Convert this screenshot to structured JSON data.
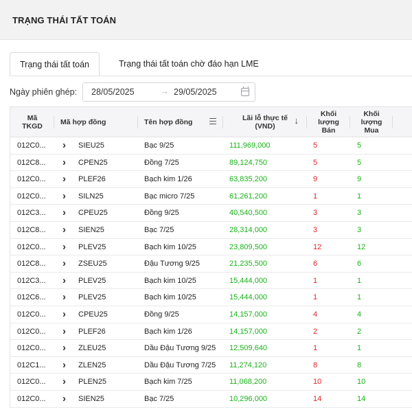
{
  "page": {
    "title": "TRẠNG THÁI TẤT TOÁN"
  },
  "tabs": [
    {
      "label": "Trạng thái tất toán",
      "active": true
    },
    {
      "label": "Trạng thái tất toán chờ đáo hạn LME",
      "active": false
    }
  ],
  "filter": {
    "label": "Ngày phiên ghép:",
    "date_from": "28/05/2025",
    "date_to": "29/05/2025",
    "arrow_icon": "arrow-right-icon",
    "calendar_icon": "calendar-icon"
  },
  "table": {
    "headers": {
      "tkgd": "Mã TKGD",
      "mahd": "Mã hợp đồng",
      "tenhd": "Tên hợp đồng",
      "lailo": "Lãi lỗ thực tế (VND)",
      "ban": "Khối lượng Bán",
      "mua": "Khối lượng Mua"
    },
    "rows": [
      {
        "tkgd": "012C0...",
        "mahd": "SIEU25",
        "tenhd": "Bạc 9/25",
        "lailo": "111,969,000",
        "ban": "5",
        "mua": "5"
      },
      {
        "tkgd": "012C8...",
        "mahd": "CPEN25",
        "tenhd": "Đồng 7/25",
        "lailo": "89,124,750",
        "ban": "5",
        "mua": "5"
      },
      {
        "tkgd": "012C0...",
        "mahd": "PLEF26",
        "tenhd": "Bạch kim 1/26",
        "lailo": "63,835,200",
        "ban": "9",
        "mua": "9"
      },
      {
        "tkgd": "012C0...",
        "mahd": "SILN25",
        "tenhd": "Bạc micro 7/25",
        "lailo": "61,261,200",
        "ban": "1",
        "mua": "1"
      },
      {
        "tkgd": "012C3...",
        "mahd": "CPEU25",
        "tenhd": "Đồng 9/25",
        "lailo": "40,540,500",
        "ban": "3",
        "mua": "3"
      },
      {
        "tkgd": "012C8...",
        "mahd": "SIEN25",
        "tenhd": "Bạc 7/25",
        "lailo": "28,314,000",
        "ban": "3",
        "mua": "3"
      },
      {
        "tkgd": "012C0...",
        "mahd": "PLEV25",
        "tenhd": "Bạch kim 10/25",
        "lailo": "23,809,500",
        "ban": "12",
        "mua": "12"
      },
      {
        "tkgd": "012C8...",
        "mahd": "ZSEU25",
        "tenhd": "Đậu Tương 9/25",
        "lailo": "21,235,500",
        "ban": "6",
        "mua": "6"
      },
      {
        "tkgd": "012C3...",
        "mahd": "PLEV25",
        "tenhd": "Bạch kim 10/25",
        "lailo": "15,444,000",
        "ban": "1",
        "mua": "1"
      },
      {
        "tkgd": "012C6...",
        "mahd": "PLEV25",
        "tenhd": "Bạch kim 10/25",
        "lailo": "15,444,000",
        "ban": "1",
        "mua": "1"
      },
      {
        "tkgd": "012C0...",
        "mahd": "CPEU25",
        "tenhd": "Đồng 9/25",
        "lailo": "14,157,000",
        "ban": "4",
        "mua": "4"
      },
      {
        "tkgd": "012C0...",
        "mahd": "PLEF26",
        "tenhd": "Bạch kim 1/26",
        "lailo": "14,157,000",
        "ban": "2",
        "mua": "2"
      },
      {
        "tkgd": "012C0...",
        "mahd": "ZLEU25",
        "tenhd": "Dầu Đậu Tương 9/25",
        "lailo": "12,509,640",
        "ban": "1",
        "mua": "1"
      },
      {
        "tkgd": "012C1...",
        "mahd": "ZLEN25",
        "tenhd": "Dầu Đậu Tương 7/25",
        "lailo": "11,274,120",
        "ban": "8",
        "mua": "8"
      },
      {
        "tkgd": "012C0...",
        "mahd": "PLEN25",
        "tenhd": "Bạch kim 7/25",
        "lailo": "11,068,200",
        "ban": "10",
        "mua": "10"
      },
      {
        "tkgd": "012C0...",
        "mahd": "SIEN25",
        "tenhd": "Bạc 7/25",
        "lailo": "10,296,000",
        "ban": "14",
        "mua": "14"
      }
    ]
  },
  "colors": {
    "profit_green": "#19b219",
    "sell_red": "#e02424",
    "header_bg": "#f2f2f3"
  }
}
